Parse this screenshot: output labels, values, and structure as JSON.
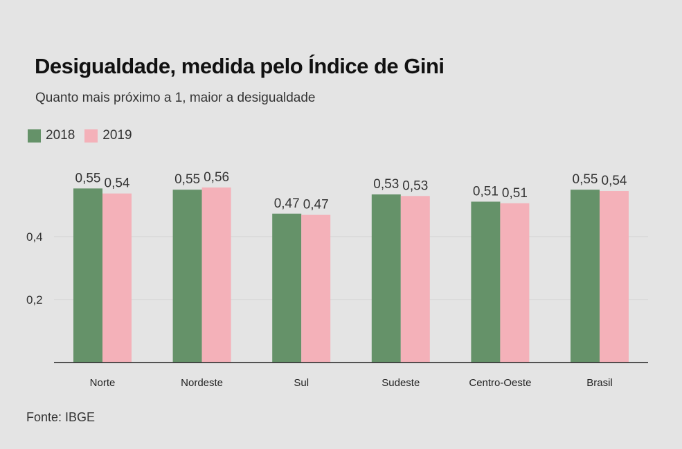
{
  "chart_data": {
    "type": "bar",
    "title": "Desigualdade, medida pelo Índice de Gini",
    "subtitle": "Quanto mais próximo a 1, maior a desigualdade",
    "categories": [
      "Norte",
      "Nordeste",
      "Sul",
      "Sudeste",
      "Centro-Oeste",
      "Brasil"
    ],
    "series": [
      {
        "name": "2018",
        "color": "#659269",
        "values": [
          0.553,
          0.549,
          0.473,
          0.534,
          0.511,
          0.549
        ],
        "labels": [
          "0,55",
          "0,55",
          "0,47",
          "0,53",
          "0,51",
          "0,55"
        ]
      },
      {
        "name": "2019",
        "color": "#f4b1b9",
        "values": [
          0.537,
          0.556,
          0.469,
          0.529,
          0.506,
          0.545
        ],
        "labels": [
          "0,54",
          "0,56",
          "0,47",
          "0,53",
          "0,51",
          "0,54"
        ]
      }
    ],
    "yticks": [
      {
        "value": 0.2,
        "label": "0,2"
      },
      {
        "value": 0.4,
        "label": "0,4"
      }
    ],
    "ylim": [
      0,
      0.6
    ],
    "grid": true,
    "legend": "top-left",
    "source": "Fonte: IBGE"
  }
}
